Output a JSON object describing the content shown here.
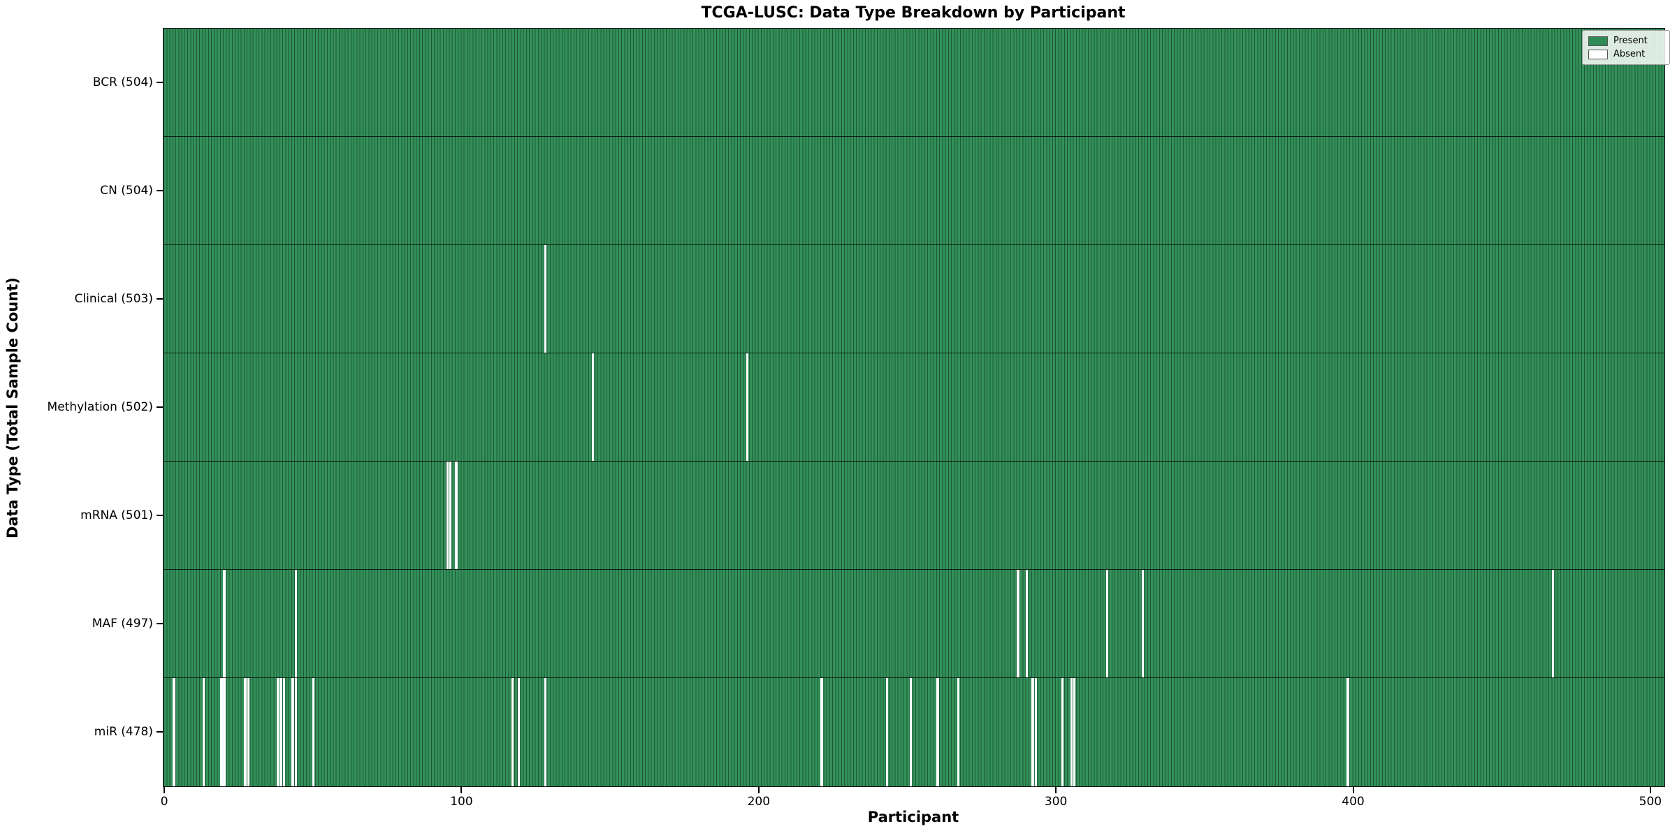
{
  "chart_data": {
    "type": "heatmap",
    "title": "TCGA-LUSC: Data Type Breakdown by Participant",
    "xlabel": "Participant",
    "ylabel": "Data Type (Total Sample Count)",
    "x_min": -0.5,
    "x_max": 504.5,
    "n_participants": 504,
    "x_ticks": [
      0,
      100,
      200,
      300,
      400,
      500
    ],
    "grid": false,
    "legend_position": "upper right",
    "legend": [
      {
        "label": "Present",
        "color": "#2e8b57"
      },
      {
        "label": "Absent",
        "color": "#ffffff"
      }
    ],
    "rows": [
      {
        "label": "BCR",
        "total": 504,
        "tick_label": "BCR (504)",
        "absent_participants": []
      },
      {
        "label": "CN",
        "total": 504,
        "tick_label": "CN (504)",
        "absent_participants": []
      },
      {
        "label": "Clinical",
        "total": 503,
        "tick_label": "Clinical (503)",
        "absent_participants": [
          128
        ]
      },
      {
        "label": "Methylation",
        "total": 502,
        "tick_label": "Methylation (502)",
        "absent_participants": [
          144,
          196
        ]
      },
      {
        "label": "mRNA",
        "total": 501,
        "tick_label": "mRNA (501)",
        "absent_participants": [
          95,
          96,
          98
        ]
      },
      {
        "label": "MAF",
        "total": 497,
        "tick_label": "MAF (497)",
        "absent_participants": [
          20,
          44,
          287,
          290,
          317,
          329,
          467
        ]
      },
      {
        "label": "miR",
        "total": 478,
        "tick_label": "miR (478)",
        "absent_participants": [
          3,
          13,
          19,
          20,
          27,
          28,
          38,
          39,
          40,
          43,
          44,
          50,
          117,
          119,
          128,
          221,
          243,
          251,
          260,
          267,
          292,
          293,
          302,
          305,
          306,
          398
        ]
      }
    ],
    "colors": {
      "present_fill": "#339059",
      "bar_edge": "#1d5737",
      "absent_fill": "#ffffff",
      "row_separator": "#1a1a1a",
      "spine": "#111111",
      "legend_bg": "#fcfefc",
      "legend_border": "#9a9a9a"
    }
  }
}
